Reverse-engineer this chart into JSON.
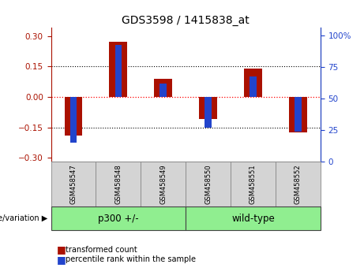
{
  "title": "GDS3598 / 1415838_at",
  "samples": [
    "GSM458547",
    "GSM458548",
    "GSM458549",
    "GSM458550",
    "GSM458551",
    "GSM458552"
  ],
  "red_values": [
    -0.19,
    0.27,
    0.09,
    -0.11,
    0.14,
    -0.175
  ],
  "blue_values_pct": [
    15,
    93,
    62,
    27,
    68,
    24
  ],
  "groups": [
    {
      "label": "p300 +/-",
      "count": 3,
      "color": "#90ee90"
    },
    {
      "label": "wild-type",
      "count": 3,
      "color": "#90ee90"
    }
  ],
  "group_label": "genotype/variation",
  "ylim_left": [
    -0.32,
    0.34
  ],
  "ylim_right": [
    0,
    106.25
  ],
  "yticks_left": [
    -0.3,
    -0.15,
    0,
    0.15,
    0.3
  ],
  "yticks_right": [
    0,
    25,
    50,
    75,
    100
  ],
  "hlines_dotted": [
    -0.15,
    0.15
  ],
  "hline_zero_color": "red",
  "red_color": "#aa1100",
  "blue_color": "#2244cc",
  "legend_items": [
    "transformed count",
    "percentile rank within the sample"
  ],
  "bar_width": 0.4,
  "blue_bar_width": 0.15,
  "cell_bg": "#d4d4d4",
  "cell_border": "#888888"
}
